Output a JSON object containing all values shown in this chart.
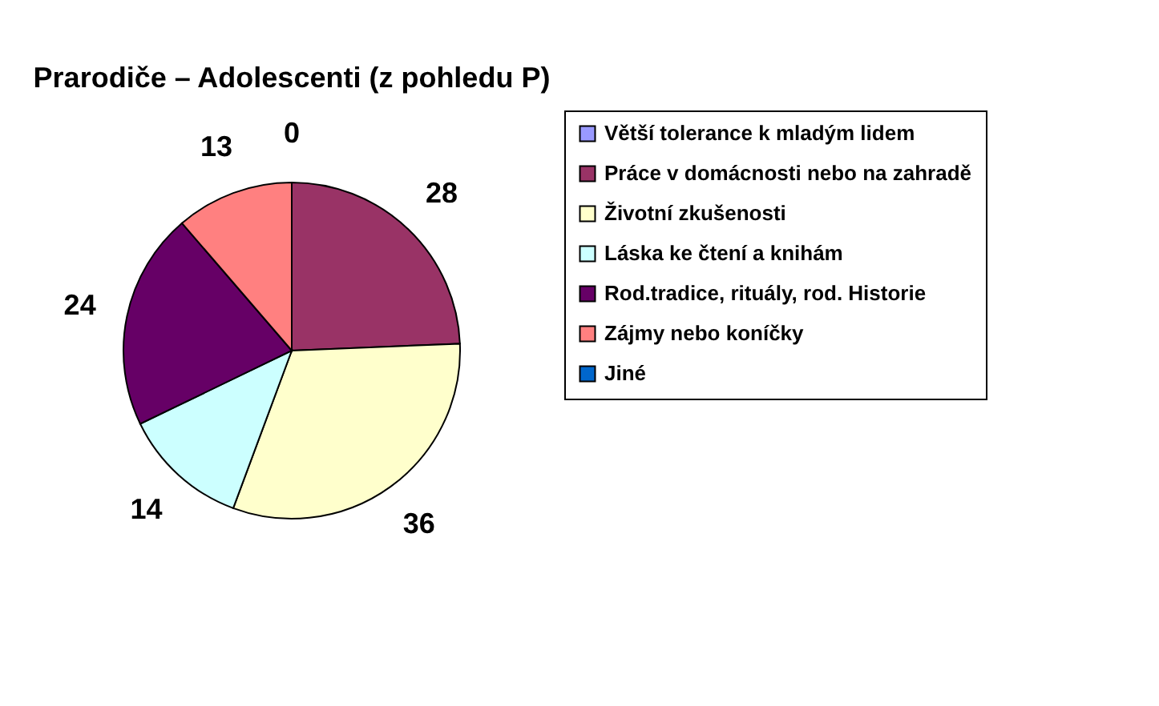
{
  "chart_data": {
    "type": "pie",
    "title": "Prarodiče – Adolescenti (z pohledu P)",
    "categories": [
      "Větší tolerance k mladým lidem",
      "Práce v domácnosti nebo na zahradě",
      "Životní zkušenosti",
      "Láska ke čtení a knihám",
      "Rod.tradice, rituály, rod. Historie",
      "Zájmy nebo koníčky",
      "Jiné"
    ],
    "values": [
      0,
      28,
      36,
      14,
      24,
      13,
      0
    ],
    "value_labels": [
      "0",
      "28",
      "36",
      "14",
      "24",
      "13",
      null
    ],
    "colors": [
      "#9999ff",
      "#993366",
      "#ffffcc",
      "#ccffff",
      "#660066",
      "#ff8080",
      "#0066cc"
    ],
    "legend": "right"
  }
}
